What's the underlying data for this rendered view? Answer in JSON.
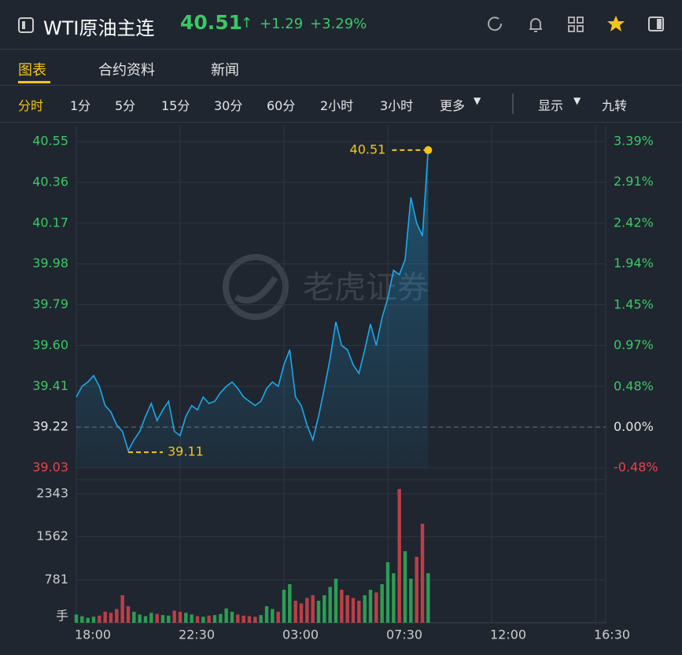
{
  "header": {
    "title": "WTI原油主连",
    "price": "40.51",
    "change": "+1.29",
    "change_pct": "+3.29%"
  },
  "tabs": [
    "图表",
    "合约资料",
    "新闻"
  ],
  "periods": [
    "分时",
    "1分",
    "5分",
    "15分",
    "30分",
    "60分",
    "2小时",
    "3小时",
    "更多",
    "显示",
    "九转"
  ],
  "watermark": "老虎证券",
  "chart_data": [
    {
      "type": "line",
      "x": [
        "18:00",
        "18:15",
        "18:30",
        "18:45",
        "19:00",
        "19:15",
        "19:30",
        "19:45",
        "20:00",
        "20:15",
        "20:30",
        "20:45",
        "21:00",
        "21:15",
        "21:30",
        "21:45",
        "22:00",
        "22:15",
        "22:30",
        "22:45",
        "23:00",
        "23:15",
        "23:30",
        "23:45",
        "00:00",
        "00:15",
        "00:30",
        "00:45",
        "01:00",
        "01:15",
        "01:30",
        "01:45",
        "02:00",
        "02:15",
        "02:30",
        "02:45",
        "03:00",
        "03:15",
        "03:30",
        "03:45",
        "04:00",
        "04:15",
        "04:30",
        "04:45",
        "05:00",
        "05:15",
        "05:30",
        "05:45",
        "06:00",
        "06:15",
        "06:30",
        "06:45",
        "07:00",
        "07:15",
        "07:30",
        "07:45",
        "08:00",
        "08:15",
        "08:30",
        "08:45",
        "09:00",
        "09:15"
      ],
      "series": [
        {
          "color": "#1ea8ea",
          "values": [
            39.36,
            39.41,
            39.43,
            39.46,
            39.41,
            39.32,
            39.29,
            39.23,
            39.2,
            39.11,
            39.16,
            39.2,
            39.27,
            39.33,
            39.25,
            39.3,
            39.34,
            39.2,
            39.18,
            39.27,
            39.32,
            39.3,
            39.36,
            39.33,
            39.34,
            39.38,
            39.41,
            39.43,
            39.4,
            39.36,
            39.34,
            39.32,
            39.34,
            39.4,
            39.43,
            39.41,
            39.51,
            39.58,
            39.36,
            39.32,
            39.23,
            39.16,
            39.27,
            39.4,
            39.54,
            39.71,
            39.6,
            39.58,
            39.51,
            39.47,
            39.58,
            39.7,
            39.6,
            39.73,
            39.82,
            39.95,
            39.93,
            40.0,
            40.29,
            40.17,
            40.11,
            40.51
          ]
        }
      ],
      "annotation_color": "#f5c518",
      "xlim": [
        "18:00",
        "16:30"
      ],
      "xticks": [
        "18:00",
        "22:30",
        "03:00",
        "07:30",
        "12:00",
        "16:30"
      ],
      "ylim": [
        39.03,
        40.55
      ],
      "yticks": [
        40.55,
        40.36,
        40.17,
        39.98,
        39.79,
        {
          "value": 39.6,
          "label": "39.60"
        },
        39.41,
        39.22,
        39.03
      ],
      "y2lim": [
        -0.48,
        3.39
      ],
      "y2ticks": [
        {
          "value": 3.39,
          "label": "3.39%"
        },
        {
          "value": 2.91,
          "label": "2.91%"
        },
        {
          "value": 2.42,
          "label": "2.42%"
        },
        {
          "value": 1.94,
          "label": "1.94%"
        },
        {
          "value": 1.45,
          "label": "1.45%"
        },
        {
          "value": 0.97,
          "label": "0.97%"
        },
        {
          "value": 0.48,
          "label": "0.48%"
        },
        {
          "value": 0,
          "label": "0.00%"
        },
        {
          "value": -0.48,
          "label": "-0.48%"
        }
      ],
      "up_color": "#3cc864",
      "down_color": "#e8424b",
      "flat_color": "#e6e6e6",
      "grid": true
    },
    {
      "type": "bar",
      "unit_label": "手",
      "values": [
        150,
        120,
        90,
        110,
        130,
        200,
        180,
        250,
        500,
        300,
        200,
        150,
        120,
        180,
        160,
        140,
        130,
        220,
        200,
        180,
        150,
        120,
        110,
        130,
        140,
        160,
        260,
        200,
        150,
        130,
        120,
        110,
        140,
        300,
        250,
        200,
        600,
        700,
        400,
        350,
        450,
        500,
        400,
        500,
        650,
        800,
        600,
        500,
        450,
        400,
        500,
        600,
        550,
        700,
        1100,
        900,
        2430,
        1300,
        800,
        1200,
        1800,
        900
      ],
      "up_color": "#2fb35a",
      "down_color": "#d9434b",
      "ylim": [
        0,
        2600
      ],
      "yticks": [
        781,
        1562,
        2343
      ],
      "grid": true
    }
  ]
}
